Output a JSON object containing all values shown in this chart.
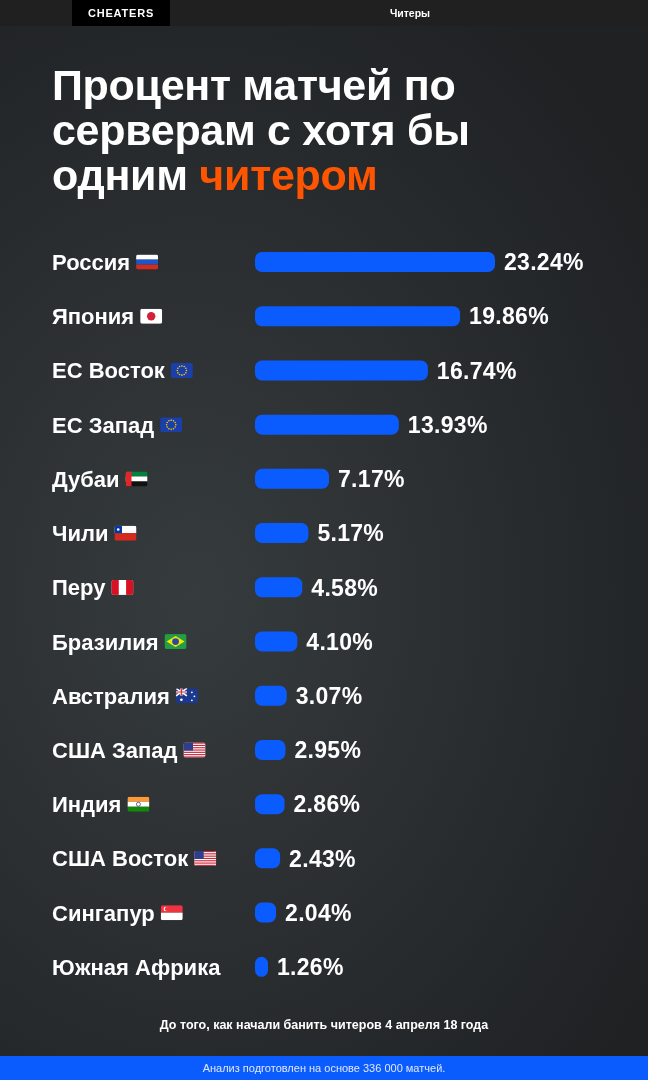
{
  "chart_data": {
    "type": "bar",
    "orientation": "horizontal",
    "title": "Процент матчей по серверам с хотя бы одним читером",
    "categories": [
      "Россия",
      "Япония",
      "ЕС Восток",
      "ЕС Запад",
      "Дубаи",
      "Чили",
      "Перу",
      "Бразилия",
      "Австралия",
      "США Запад",
      "Индия",
      "США Восток",
      "Сингапур",
      "Южная Африка"
    ],
    "values": [
      23.24,
      19.86,
      16.74,
      13.93,
      7.17,
      5.17,
      4.58,
      4.1,
      3.07,
      2.95,
      2.86,
      2.43,
      2.04,
      1.26
    ],
    "value_labels": [
      "23.24%",
      "19.86%",
      "16.74%",
      "13.93%",
      "7.17%",
      "5.17%",
      "4.58%",
      "4.10%",
      "3.07%",
      "2.95%",
      "2.86%",
      "2.43%",
      "2.04%",
      "1.26%"
    ],
    "color": "#0b5cff",
    "annotations": [
      "CHEATERS",
      "Читеры",
      "До того, как начали банить читеров 4 апреля 18 года",
      "Анализ подготовлен на основе 336 000 матчей."
    ]
  }
}
